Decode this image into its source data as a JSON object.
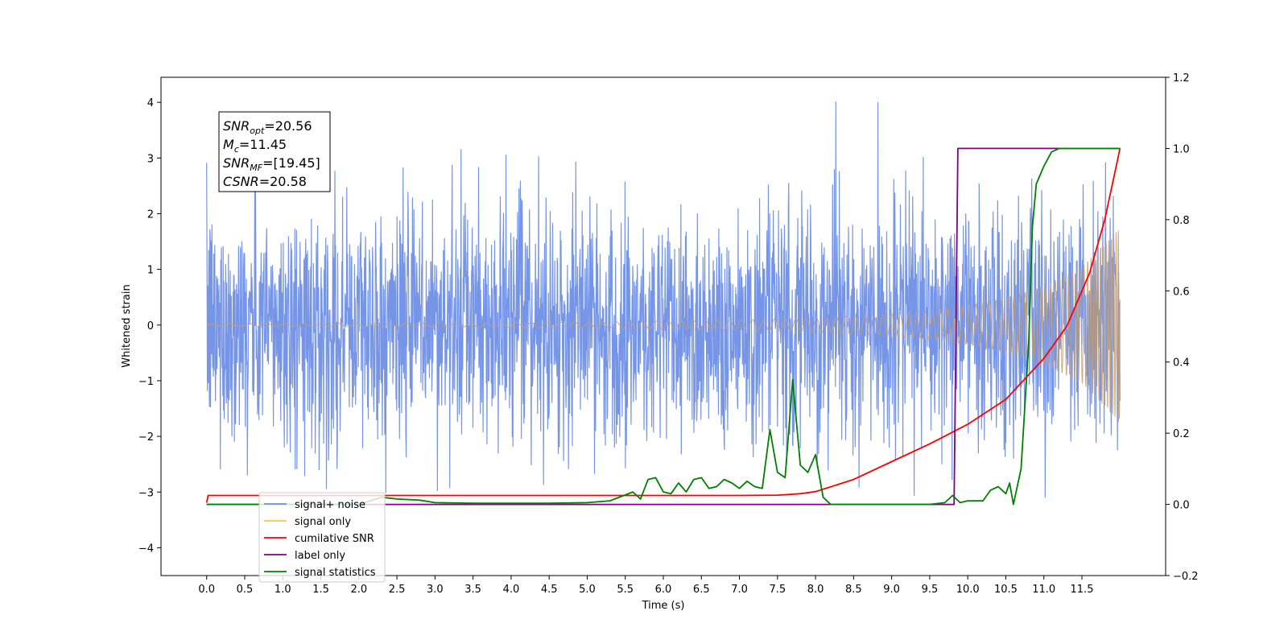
{
  "chart_data": {
    "type": "line",
    "xlabel": "Time (s)",
    "ylabel": "Whitened strain",
    "xlim": [
      -0.6,
      12.6
    ],
    "ylim": [
      -4.5,
      4.45
    ],
    "ylim_right": [
      -0.2,
      1.2
    ],
    "grid": false,
    "legend_placement": "bottom-left",
    "x_ticks": [
      0.0,
      0.5,
      1.0,
      1.5,
      2.0,
      2.5,
      3.0,
      3.5,
      4.0,
      4.5,
      5.0,
      5.5,
      6.0,
      6.5,
      7.0,
      7.5,
      8.0,
      8.5,
      9.0,
      9.5,
      10.0,
      10.5,
      11.0,
      11.5
    ],
    "x_tick_labels": [
      "0.0",
      "0.5",
      "1.0",
      "1.5",
      "2.0",
      "2.5",
      "3.0",
      "3.5",
      "4.0",
      "4.5",
      "5.0",
      "5.5",
      "6.0",
      "6.5",
      "7.0",
      "7.5",
      "8.0",
      "8.5",
      "9.0",
      "9.5",
      "10.0",
      "10.5",
      "11.0",
      "11.5"
    ],
    "y_ticks": [
      -4,
      -3,
      -2,
      -1,
      0,
      1,
      2,
      3,
      4
    ],
    "y_tick_labels": [
      "−4",
      "−3",
      "−2",
      "−1",
      "0",
      "1",
      "2",
      "3",
      "4"
    ],
    "y_right_ticks": [
      -0.2,
      0.0,
      0.2,
      0.4,
      0.6,
      0.8,
      1.0,
      1.2
    ],
    "y_right_tick_labels": [
      "−0.2",
      "0.0",
      "0.2",
      "0.4",
      "0.6",
      "0.8",
      "1.0",
      "1.2"
    ],
    "annotation": [
      {
        "main": "SNR",
        "sub": "opt",
        "rest": "=20.56"
      },
      {
        "main": "M",
        "sub": "c",
        "rest": "=11.45"
      },
      {
        "main": "SNR",
        "sub": "MF",
        "rest": "=[19.45]"
      },
      {
        "main": "CSNR",
        "sub": "",
        "rest": "=20.58"
      }
    ],
    "series": [
      {
        "name": "signal+ noise",
        "axis": "left",
        "color": "#6f8fe6",
        "description_kind": "noise",
        "x_range": [
          0.0,
          12.0
        ],
        "envelope": [
          [
            0.0,
            2.9
          ],
          [
            2.0,
            2.9
          ],
          [
            4.0,
            2.9
          ],
          [
            6.0,
            3.0
          ],
          [
            8.0,
            3.0
          ],
          [
            10.0,
            3.1
          ],
          [
            11.0,
            3.3
          ],
          [
            12.0,
            3.5
          ]
        ]
      },
      {
        "name": "signal only",
        "axis": "left",
        "color": "#c4a077",
        "description_kind": "chirp",
        "x": [
          0.0,
          4.0,
          6.0,
          7.0,
          8.0,
          8.5,
          9.0,
          9.5,
          10.0,
          10.5,
          11.0,
          11.5,
          12.0
        ],
        "amplitude": [
          0.02,
          0.04,
          0.07,
          0.09,
          0.13,
          0.16,
          0.2,
          0.26,
          0.35,
          0.48,
          0.7,
          1.05,
          1.75
        ]
      },
      {
        "name": "cumilative SNR",
        "axis": "right",
        "color": "#ff0000",
        "x": [
          0.0,
          0.02,
          2.0,
          4.0,
          6.0,
          7.0,
          7.5,
          7.8,
          8.0,
          8.5,
          9.0,
          9.5,
          10.0,
          10.5,
          11.0,
          11.3,
          11.6,
          11.8,
          12.0
        ],
        "y": [
          0.005,
          0.025,
          0.025,
          0.025,
          0.025,
          0.025,
          0.026,
          0.03,
          0.036,
          0.07,
          0.12,
          0.17,
          0.225,
          0.295,
          0.41,
          0.5,
          0.65,
          0.8,
          1.0
        ]
      },
      {
        "name": "label only",
        "axis": "right",
        "color": "#800080",
        "x": [
          0.0,
          9.82,
          9.87,
          12.0
        ],
        "y": [
          0.0,
          0.0,
          1.0,
          1.0
        ]
      },
      {
        "name": "signal statistics",
        "axis": "right",
        "color": "#008000",
        "x": [
          0.0,
          2.0,
          2.3,
          2.5,
          2.8,
          3.0,
          3.5,
          4.0,
          4.5,
          5.0,
          5.3,
          5.6,
          5.7,
          5.8,
          5.9,
          6.0,
          6.1,
          6.2,
          6.3,
          6.4,
          6.5,
          6.6,
          6.7,
          6.8,
          6.9,
          7.0,
          7.1,
          7.2,
          7.3,
          7.4,
          7.5,
          7.6,
          7.7,
          7.8,
          7.9,
          8.0,
          8.1,
          8.2,
          8.3,
          8.5,
          9.0,
          9.5,
          9.7,
          9.8,
          9.9,
          10.0,
          10.2,
          10.3,
          10.4,
          10.5,
          10.55,
          10.6,
          10.7,
          10.8,
          10.85,
          10.9,
          11.0,
          11.1,
          11.2,
          12.0
        ],
        "y": [
          0.0,
          0.0,
          0.02,
          0.015,
          0.012,
          0.005,
          0.003,
          0.003,
          0.003,
          0.005,
          0.01,
          0.035,
          0.015,
          0.07,
          0.075,
          0.035,
          0.03,
          0.06,
          0.035,
          0.07,
          0.075,
          0.045,
          0.05,
          0.07,
          0.06,
          0.045,
          0.065,
          0.05,
          0.045,
          0.21,
          0.09,
          0.075,
          0.35,
          0.11,
          0.09,
          0.14,
          0.02,
          0.0,
          0.0,
          0.0,
          0.0,
          0.0,
          0.005,
          0.025,
          0.005,
          0.01,
          0.01,
          0.04,
          0.05,
          0.03,
          0.06,
          0.0,
          0.1,
          0.45,
          0.78,
          0.9,
          0.95,
          0.99,
          1.0,
          1.0
        ]
      }
    ]
  }
}
